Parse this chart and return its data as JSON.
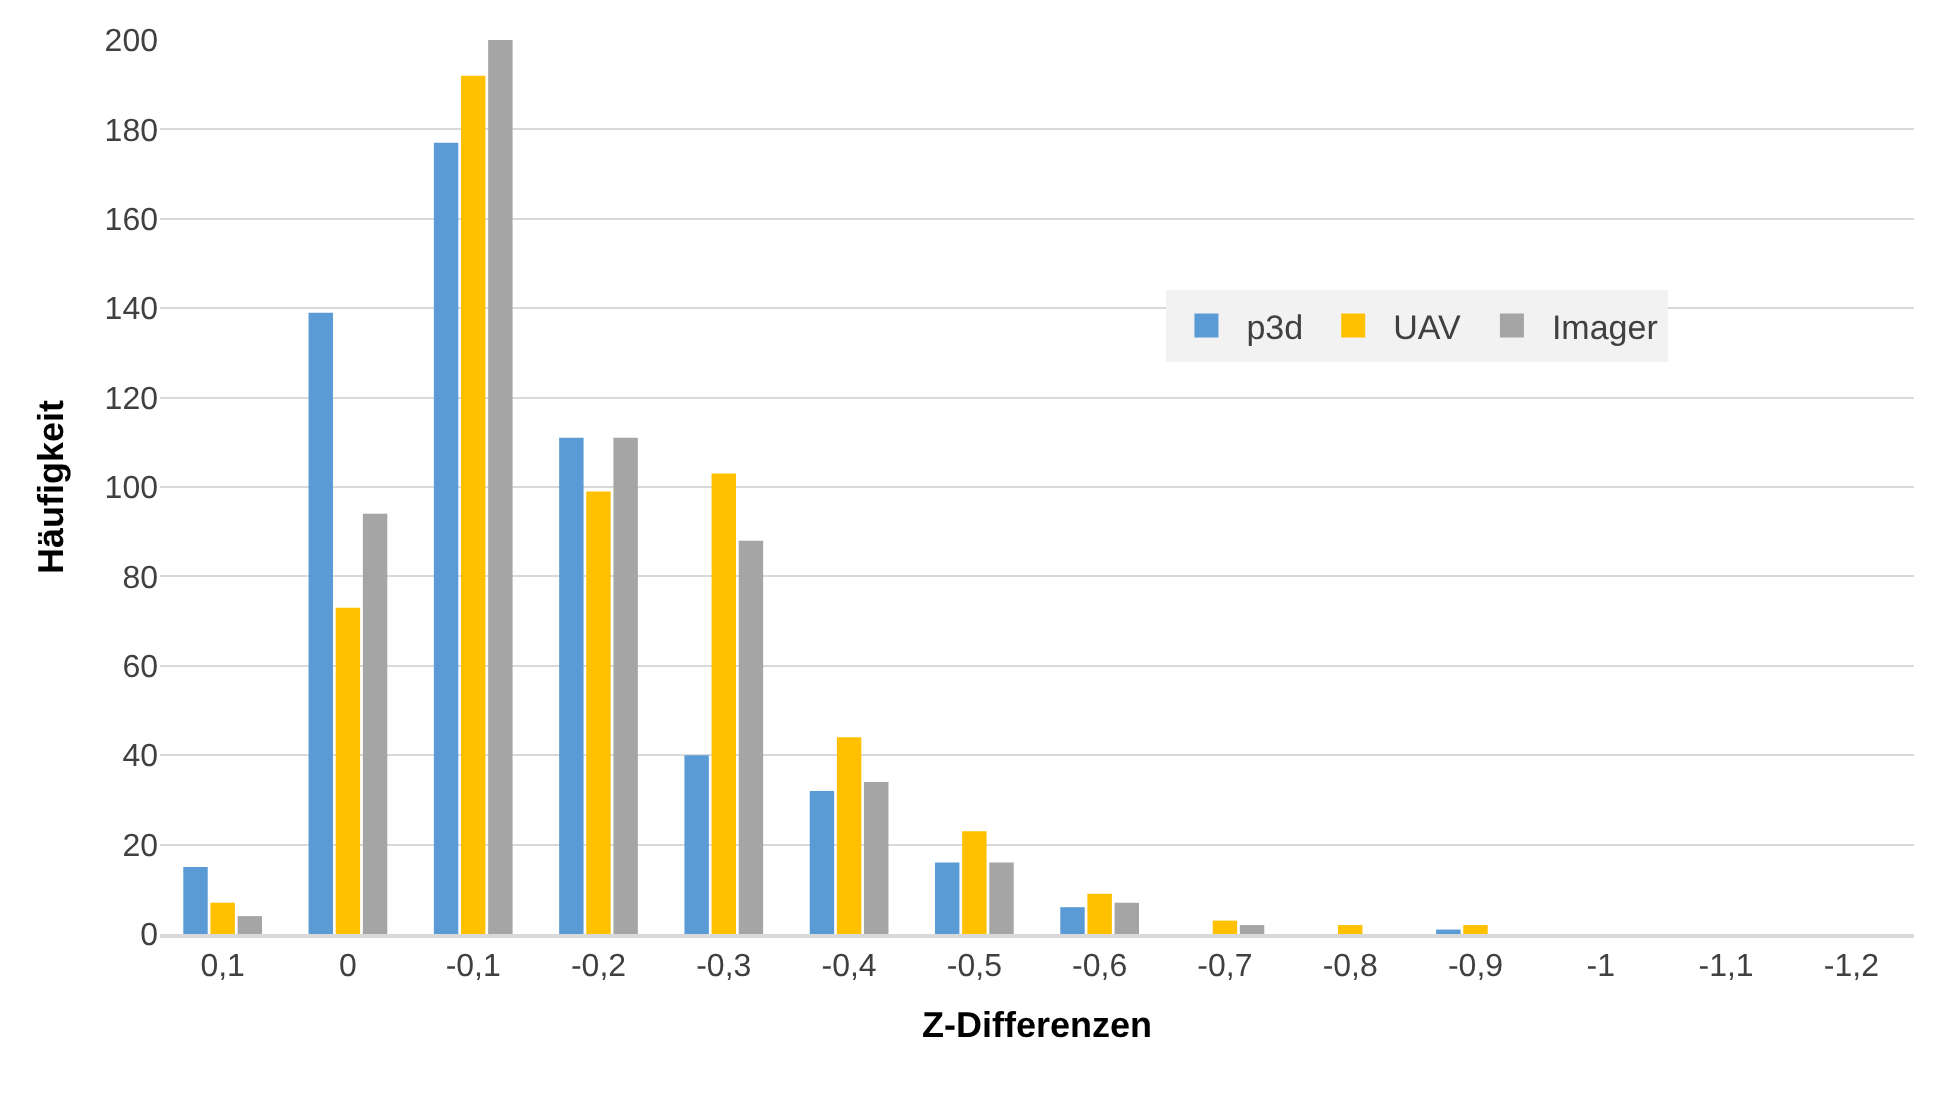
{
  "chart_data": {
    "type": "bar",
    "xlabel": "Z-Differenzen",
    "ylabel": "Häufigkeit",
    "categories": [
      "0,1",
      "0",
      "-0,1",
      "-0,2",
      "-0,3",
      "-0,4",
      "-0,5",
      "-0,6",
      "-0,7",
      "-0,8",
      "-0,9",
      "-1",
      "-1,1",
      "-1,2"
    ],
    "series": [
      {
        "name": "p3d",
        "color": "#5b9bd5",
        "values": [
          15,
          139,
          177,
          111,
          40,
          32,
          16,
          6,
          0,
          0,
          1,
          0,
          0,
          0
        ]
      },
      {
        "name": "UAV",
        "color": "#ffc000",
        "values": [
          7,
          73,
          192,
          99,
          103,
          44,
          23,
          9,
          3,
          2,
          2,
          0,
          0,
          0
        ]
      },
      {
        "name": "Imager",
        "color": "#a5a5a5",
        "values": [
          4,
          94,
          200,
          111,
          88,
          34,
          16,
          7,
          2,
          0,
          0,
          0,
          0,
          0
        ]
      }
    ],
    "ylim": [
      0,
      200
    ],
    "yticks": [
      0,
      20,
      40,
      60,
      80,
      100,
      120,
      140,
      160,
      180,
      200
    ],
    "grid": "y",
    "legend": "top right"
  }
}
